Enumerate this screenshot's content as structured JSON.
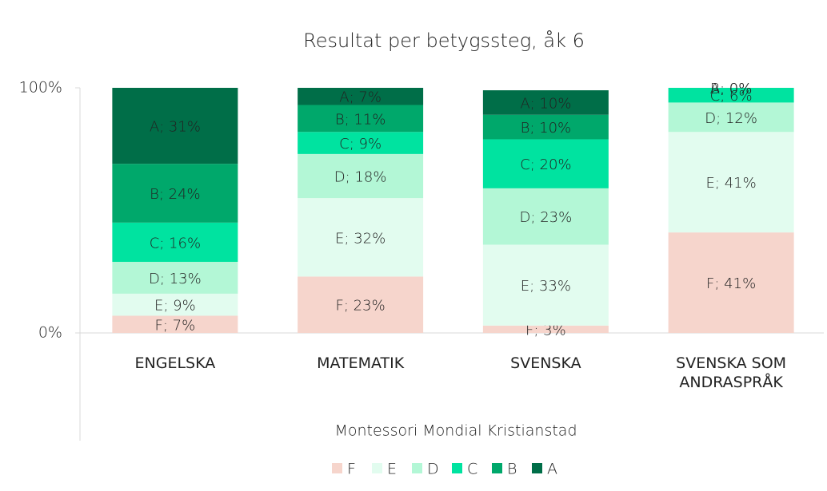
{
  "chart_data": {
    "type": "stacked_bar",
    "title": "Resultat per betygssteg, åk 6",
    "x_label": "Montessori Mondial Kristianstad",
    "categories": [
      "ENGELSKA",
      "MATEMATIK",
      "SVENSKA",
      "SVENSKA SOM ANDRASPRÅK"
    ],
    "series": [
      {
        "name": "F",
        "color": "#f6d5cc",
        "values": [
          7,
          23,
          3,
          41
        ],
        "value_labels": [
          "F; 7%",
          "F; 23%",
          "F; 3%",
          "F; 41%"
        ]
      },
      {
        "name": "E",
        "color": "#e2fcef",
        "values": [
          9,
          32,
          33,
          41
        ],
        "value_labels": [
          "E; 9%",
          "E; 32%",
          "E; 33%",
          "E; 41%"
        ]
      },
      {
        "name": "D",
        "color": "#b3f7d6",
        "values": [
          13,
          18,
          23,
          12
        ],
        "value_labels": [
          "D; 13%",
          "D; 18%",
          "D; 23%",
          "D; 12%"
        ]
      },
      {
        "name": "C",
        "color": "#00e3a0",
        "values": [
          16,
          9,
          20,
          6
        ],
        "value_labels": [
          "C; 16%",
          "C; 9%",
          "C; 20%",
          "C; 6%"
        ]
      },
      {
        "name": "B",
        "color": "#00a86b",
        "values": [
          24,
          11,
          10,
          0
        ],
        "value_labels": [
          "B; 24%",
          "B; 11%",
          "B; 10%",
          "B; 0%"
        ]
      },
      {
        "name": "A",
        "color": "#006e48",
        "values": [
          31,
          7,
          10,
          0
        ],
        "value_labels": [
          "A; 31%",
          "A; 7%",
          "A; 10%",
          "A; 0%"
        ]
      }
    ],
    "ylim": [
      0,
      100
    ],
    "yticks": [
      {
        "value": 0,
        "label": "0%"
      },
      {
        "value": 100,
        "label": "100%"
      }
    ],
    "legend": "bottom"
  }
}
